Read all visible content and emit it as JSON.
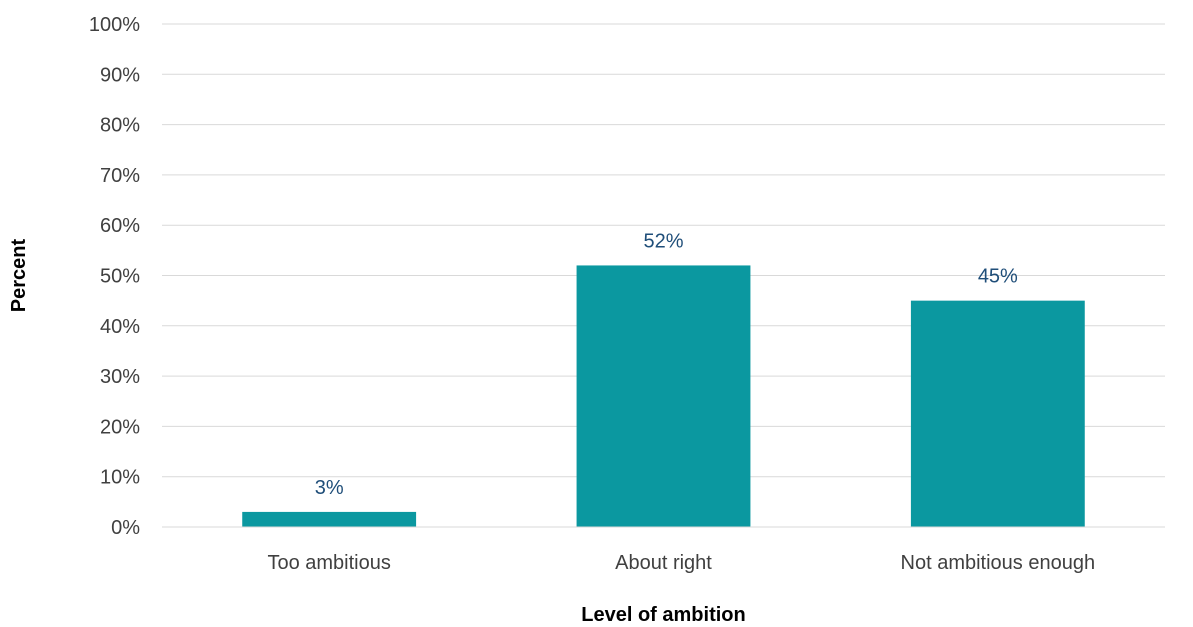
{
  "chart_data": {
    "type": "bar",
    "categories": [
      "Too ambitious",
      "About right",
      "Not ambitious enough"
    ],
    "values": [
      3,
      52,
      45
    ],
    "data_labels": [
      "3%",
      "52%",
      "45%"
    ],
    "xlabel": "Level of ambition",
    "ylabel": "Percent",
    "ylim": [
      0,
      100
    ],
    "y_ticks": [
      0,
      10,
      20,
      30,
      40,
      50,
      60,
      70,
      80,
      90,
      100
    ],
    "y_tick_labels": [
      "0%",
      "10%",
      "20%",
      "30%",
      "40%",
      "50%",
      "60%",
      "70%",
      "80%",
      "90%",
      "100%"
    ],
    "grid": true,
    "legend": "none",
    "colors": {
      "bar": "#0b98a0",
      "grid": "#d9d9d9",
      "axis": "#d9d9d9",
      "data_label": "#1f4e79"
    }
  }
}
